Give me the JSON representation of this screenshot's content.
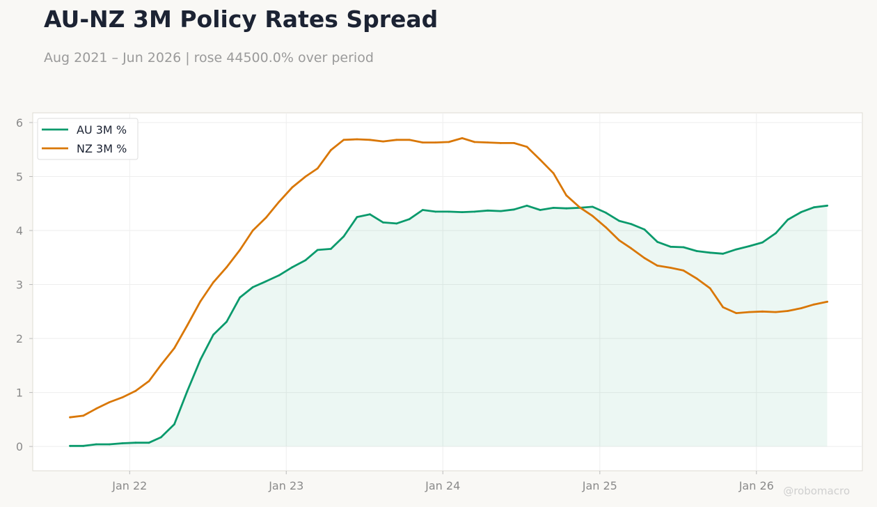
{
  "title": "AU-NZ 3M Policy Rates Spread",
  "subtitle": "Aug 2021 – Jun 2026 | rose 44500.0% over period",
  "watermark": "@robomacro",
  "colors": {
    "background": "#f9f8f5",
    "plot_background": "#ffffff",
    "au": "#0a9a6c",
    "nz": "#d97706",
    "title": "#1c2333",
    "muted": "#9a9a9a"
  },
  "chart_data": {
    "type": "line",
    "title": "AU-NZ 3M Policy Rates Spread",
    "subtitle": "Aug 2021 – Jun 2026 | rose 44500.0% over period",
    "xlabel": "",
    "ylabel": "",
    "grid": true,
    "legend_position": "top-left",
    "ylim": [
      -0.45,
      6.18
    ],
    "xlim": [
      "2021-05-20",
      "2026-09-05"
    ],
    "y_ticks": [
      0,
      1,
      2,
      3,
      4,
      5,
      6
    ],
    "x_ticks": [
      {
        "label": "Jan 22",
        "date": "2022-01-01"
      },
      {
        "label": "Jan 23",
        "date": "2023-01-01"
      },
      {
        "label": "Jan 24",
        "date": "2024-01-01"
      },
      {
        "label": "Jan 25",
        "date": "2025-01-01"
      },
      {
        "label": "Jan 26",
        "date": "2026-01-01"
      }
    ],
    "x": [
      "2021-08",
      "2021-09",
      "2021-10",
      "2021-11",
      "2021-12",
      "2022-01",
      "2022-02",
      "2022-03",
      "2022-04",
      "2022-05",
      "2022-06",
      "2022-07",
      "2022-08",
      "2022-09",
      "2022-10",
      "2022-11",
      "2022-12",
      "2023-01",
      "2023-02",
      "2023-03",
      "2023-04",
      "2023-05",
      "2023-06",
      "2023-07",
      "2023-08",
      "2023-09",
      "2023-10",
      "2023-11",
      "2023-12",
      "2024-01",
      "2024-02",
      "2024-03",
      "2024-04",
      "2024-05",
      "2024-06",
      "2024-07",
      "2024-08",
      "2024-09",
      "2024-10",
      "2024-11",
      "2024-12",
      "2025-01",
      "2025-02",
      "2025-03",
      "2025-04",
      "2025-05",
      "2025-06",
      "2025-07",
      "2025-08",
      "2025-09",
      "2025-10",
      "2025-11",
      "2025-12",
      "2026-01",
      "2026-02",
      "2026-03",
      "2026-04",
      "2026-05",
      "2026-06"
    ],
    "series": [
      {
        "name": "AU 3M %",
        "color": "#0a9a6c",
        "fill": true,
        "values": [
          0.01,
          0.01,
          0.04,
          0.04,
          0.06,
          0.07,
          0.07,
          0.17,
          0.41,
          1.02,
          1.61,
          2.07,
          2.31,
          2.76,
          2.95,
          3.06,
          3.17,
          3.32,
          3.45,
          3.64,
          3.66,
          3.89,
          4.25,
          4.3,
          4.15,
          4.13,
          4.21,
          4.38,
          4.35,
          4.35,
          4.34,
          4.35,
          4.37,
          4.36,
          4.39,
          4.46,
          4.38,
          4.42,
          4.41,
          4.42,
          4.44,
          4.33,
          4.18,
          4.12,
          4.02,
          3.79,
          3.7,
          3.69,
          3.62,
          3.59,
          3.57,
          3.65,
          3.71,
          3.78,
          3.95,
          4.2,
          4.34,
          4.43,
          4.46
        ]
      },
      {
        "name": "NZ 3M %",
        "color": "#d97706",
        "fill": false,
        "values": [
          0.54,
          0.57,
          0.7,
          0.82,
          0.91,
          1.03,
          1.21,
          1.51,
          1.82,
          2.24,
          2.69,
          3.04,
          3.32,
          3.64,
          4.0,
          4.24,
          4.53,
          4.8,
          5.0,
          5.15,
          5.49,
          5.68,
          5.69,
          5.68,
          5.65,
          5.68,
          5.68,
          5.63,
          5.63,
          5.64,
          5.71,
          5.64,
          5.63,
          5.62,
          5.62,
          5.55,
          5.31,
          5.06,
          4.65,
          4.43,
          4.27,
          4.06,
          3.82,
          3.67,
          3.49,
          3.35,
          3.31,
          3.26,
          3.11,
          2.93,
          2.58,
          2.47,
          2.49,
          2.5,
          2.49,
          2.51,
          2.56,
          2.63,
          2.68
        ]
      }
    ]
  }
}
